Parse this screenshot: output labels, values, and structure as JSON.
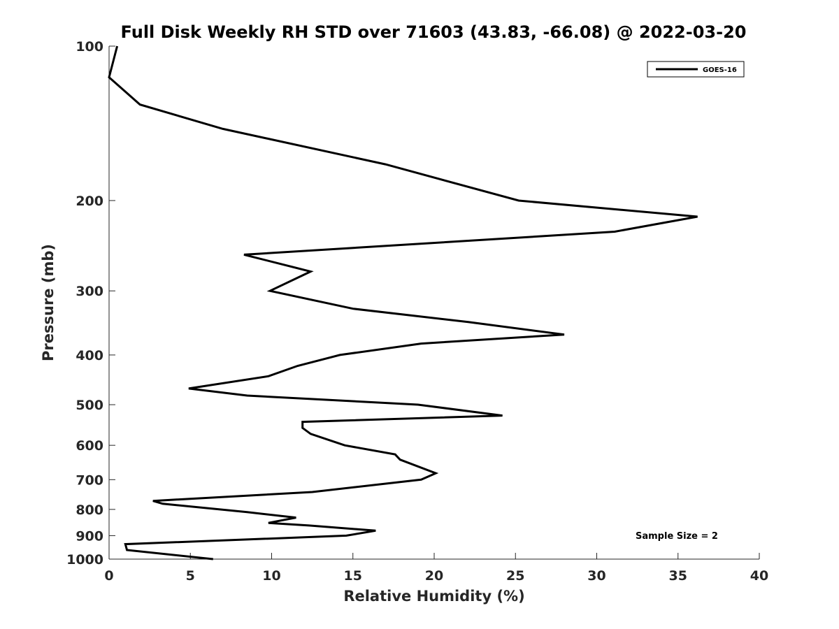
{
  "chart_data": {
    "type": "line",
    "title": "Full Disk Weekly RH STD over 71603 (43.83, -66.08) @ 2022-03-20",
    "xlabel": "Relative Humidity (%)",
    "ylabel": "Pressure (mb)",
    "xlim": [
      0,
      40
    ],
    "ylim": [
      100,
      1000
    ],
    "y_scale": "log",
    "y_reversed": true,
    "x_ticks": [
      0,
      5,
      10,
      15,
      20,
      25,
      30,
      35,
      40
    ],
    "y_ticks": [
      100,
      200,
      300,
      400,
      500,
      600,
      700,
      800,
      900,
      1000
    ],
    "legend": {
      "location": "top-right",
      "entries": [
        "GOES-16"
      ]
    },
    "annotation": "Sample Size = 2",
    "series": [
      {
        "name": "GOES-16",
        "color": "#000000",
        "points": [
          [
            0.5,
            100
          ],
          [
            0.0,
            115
          ],
          [
            1.9,
            130
          ],
          [
            7.0,
            145
          ],
          [
            17.0,
            170
          ],
          [
            25.2,
            200
          ],
          [
            36.2,
            215
          ],
          [
            31.1,
            230
          ],
          [
            8.3,
            255
          ],
          [
            12.4,
            275
          ],
          [
            9.9,
            300
          ],
          [
            15.0,
            325
          ],
          [
            22.1,
            345
          ],
          [
            28.0,
            365
          ],
          [
            19.2,
            380
          ],
          [
            14.2,
            400
          ],
          [
            11.6,
            420
          ],
          [
            9.8,
            440
          ],
          [
            4.9,
            465
          ],
          [
            8.5,
            480
          ],
          [
            19.0,
            500
          ],
          [
            24.2,
            525
          ],
          [
            11.9,
            540
          ],
          [
            11.9,
            555
          ],
          [
            12.4,
            570
          ],
          [
            14.5,
            600
          ],
          [
            17.6,
            625
          ],
          [
            17.9,
            640
          ],
          [
            20.1,
            680
          ],
          [
            19.2,
            700
          ],
          [
            12.5,
            740
          ],
          [
            2.7,
            770
          ],
          [
            3.3,
            780
          ],
          [
            8.5,
            810
          ],
          [
            11.5,
            830
          ],
          [
            9.8,
            850
          ],
          [
            12.3,
            860
          ],
          [
            16.4,
            880
          ],
          [
            14.6,
            900
          ],
          [
            1.0,
            935
          ],
          [
            1.1,
            960
          ],
          [
            6.4,
            1000
          ]
        ]
      }
    ]
  }
}
